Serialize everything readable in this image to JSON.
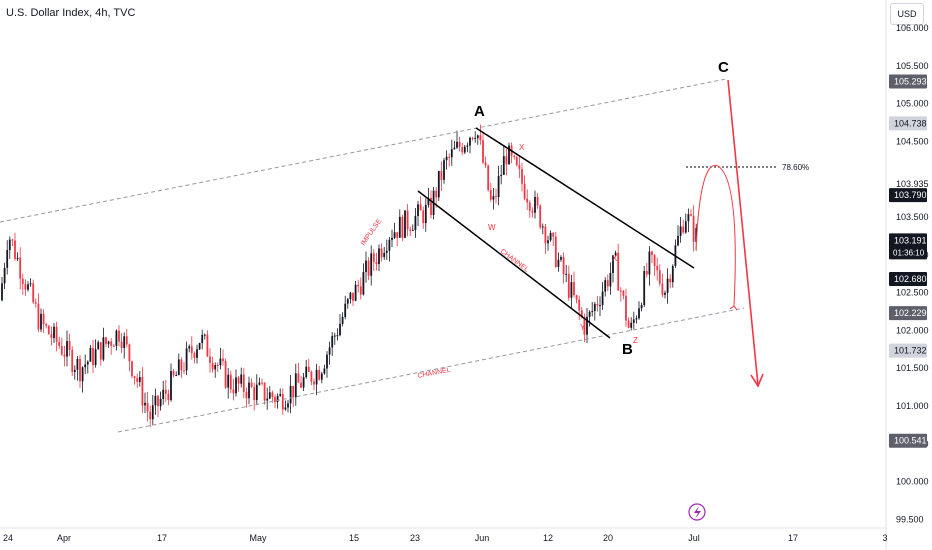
{
  "header": {
    "title": "U.S. Dollar Index, 4h, TVC",
    "currency": "USD"
  },
  "colors": {
    "up": "#131722",
    "down": "#f23645",
    "annot_red": "#f23645",
    "channel_line": "#9598a1",
    "text": "#131722"
  },
  "chart_data": {
    "type": "candlestick",
    "title": "U.S. Dollar Index, 4h, TVC",
    "y_axis": {
      "range": [
        99.35,
        106.3
      ],
      "ticks": [
        "99.500",
        "100.000",
        "100.500",
        "101.000",
        "101.500",
        "102.000",
        "102.500",
        "103.000",
        "103.500",
        "103.935",
        "104.500",
        "105.000",
        "105.500",
        "106.000"
      ],
      "tick_values": [
        99.5,
        100.0,
        100.5,
        101.0,
        101.5,
        102.0,
        102.5,
        103.0,
        103.5,
        103.935,
        104.5,
        105.0,
        105.5,
        106.0
      ]
    },
    "x_axis": {
      "ticks": [
        "24",
        "Apr",
        "17",
        "May",
        "15",
        "23",
        "Jun",
        "12",
        "20",
        "Jul",
        "17",
        "3"
      ]
    },
    "price_labels": [
      {
        "text": "105.293",
        "value": 105.293,
        "style": "grey"
      },
      {
        "text": "104.738",
        "value": 104.738,
        "style": "light"
      },
      {
        "text": "103.790",
        "value": 103.79,
        "style": "black"
      },
      {
        "text": "103.191",
        "sub": "01:36:10",
        "value": 103.191,
        "style": "black"
      },
      {
        "text": "102.680",
        "value": 102.68,
        "style": "black"
      },
      {
        "text": "102.229",
        "value": 102.229,
        "style": "grey"
      },
      {
        "text": "101.732",
        "value": 101.732,
        "style": "light"
      },
      {
        "text": "100.541",
        "value": 100.541,
        "style": "grey"
      }
    ],
    "annotations": {
      "wave_labels": [
        "A",
        "B",
        "C"
      ],
      "sub_labels": [
        "W",
        "X",
        "Y",
        "X",
        "Z"
      ],
      "text_labels": [
        "IMPULSE",
        "CHANNEL",
        "CHANNEL"
      ],
      "fib_label": "78.60%"
    },
    "key_prices": [
      {
        "name": "start",
        "value": 102.4
      },
      {
        "name": "peak_A",
        "value": 104.7
      },
      {
        "name": "W",
        "value": 103.6
      },
      {
        "name": "X1",
        "value": 104.35
      },
      {
        "name": "Y",
        "value": 102.05
      },
      {
        "name": "X2",
        "value": 102.9
      },
      {
        "name": "Z",
        "value": 101.95
      },
      {
        "name": "last",
        "value": 103.19
      }
    ]
  }
}
